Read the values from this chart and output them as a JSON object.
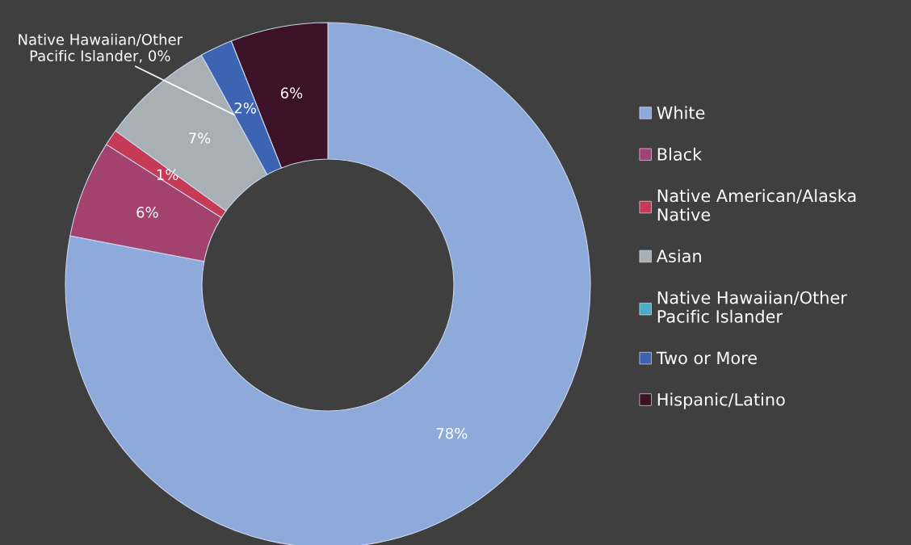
{
  "chart_data": {
    "type": "donut",
    "categories": [
      "White",
      "Black",
      "Native American/Alaska Native",
      "Asian",
      "Native Hawaiian/Other Pacific Islander",
      "Two or More",
      "Hispanic/Latino"
    ],
    "values": [
      78,
      6,
      1,
      7,
      0,
      2,
      6
    ],
    "colors": [
      "#8eaadb",
      "#a3416f",
      "#c73a55",
      "#a9b0b5",
      "#4bacc6",
      "#3d63b3",
      "#3c1228"
    ],
    "value_labels": [
      "78%",
      "6%",
      "1%",
      "7%",
      "Native Hawaiian/Other Pacific Islander, 0%",
      "2%",
      "6%"
    ],
    "legend": "right"
  }
}
